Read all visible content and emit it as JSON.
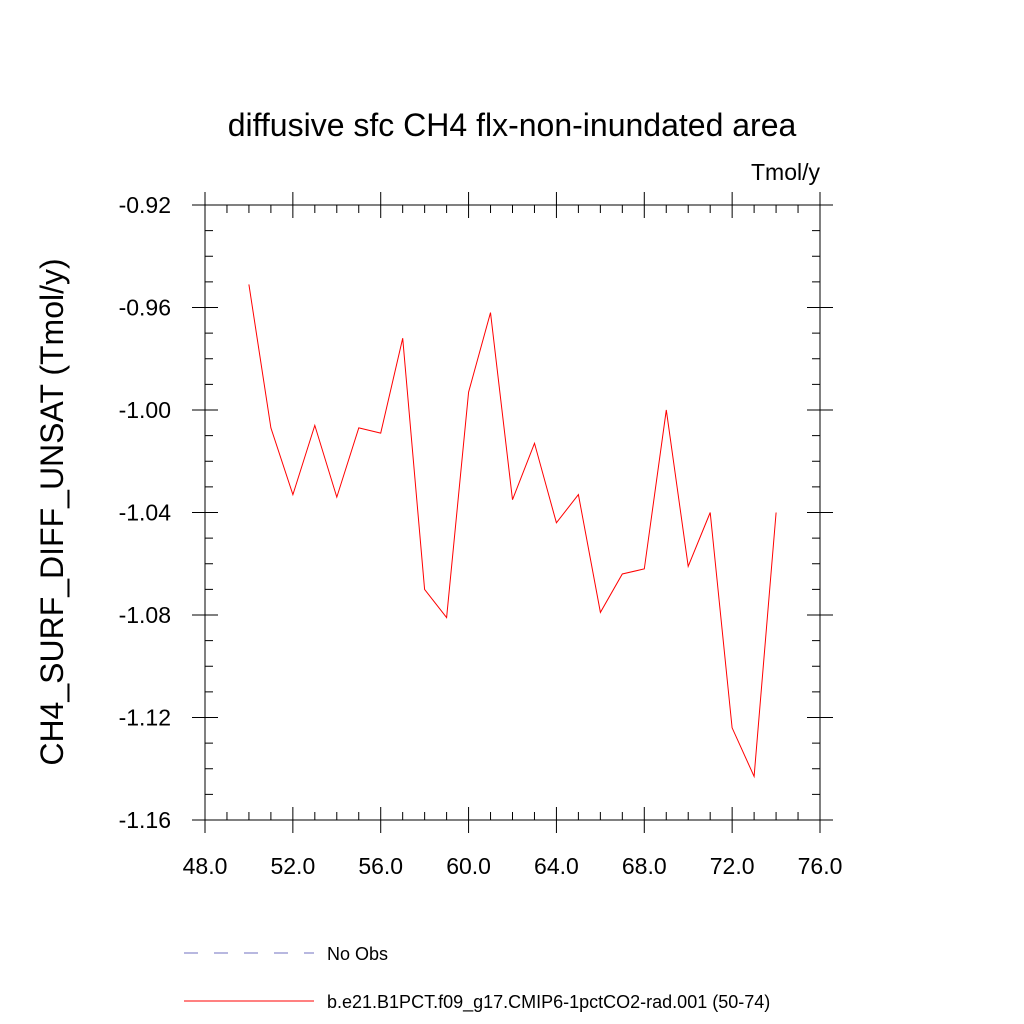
{
  "chart_data": {
    "type": "line",
    "title": "diffusive sfc CH4 flx-non-inundated area",
    "units_label": "Tmol/y",
    "ylabel": "CH4_SURF_DIFF_UNSAT  (Tmol/y)",
    "xlabel": "",
    "xlim": [
      48,
      76
    ],
    "ylim": [
      -1.16,
      -0.92
    ],
    "x_ticks": [
      48,
      52,
      56,
      60,
      64,
      68,
      72,
      76
    ],
    "x_tick_labels": [
      "48.0",
      "52.0",
      "56.0",
      "60.0",
      "64.0",
      "68.0",
      "72.0",
      "76.0"
    ],
    "y_ticks": [
      -1.16,
      -1.12,
      -1.08,
      -1.04,
      -1.0,
      -0.96,
      -0.92
    ],
    "y_tick_labels": [
      "-1.16",
      "-1.12",
      "-1.08",
      "-1.04",
      "-1.00",
      "-0.96",
      "-0.92"
    ],
    "x_minor_step": 1,
    "y_minor_step": 0.01,
    "grid": false,
    "legend_position": "bottom",
    "series": [
      {
        "name": "b.e21.B1PCT.f09_g17.CMIP6-1pctCO2-rad.001 (50-74)",
        "color": "#ff0000",
        "style": "solid",
        "x": [
          50,
          51,
          52,
          53,
          54,
          55,
          56,
          57,
          58,
          59,
          60,
          61,
          62,
          63,
          64,
          65,
          66,
          67,
          68,
          69,
          70,
          71,
          72,
          73,
          74
        ],
        "y": [
          -0.951,
          -1.007,
          -1.033,
          -1.006,
          -1.034,
          -1.007,
          -1.009,
          -0.972,
          -1.07,
          -1.081,
          -0.993,
          -0.962,
          -1.035,
          -1.013,
          -1.044,
          -1.033,
          -1.079,
          -1.064,
          -1.062,
          -1.0,
          -1.061,
          -1.04,
          -1.124,
          -1.143,
          -1.04
        ]
      }
    ],
    "legend": [
      {
        "label": "No Obs",
        "color": "#7070c0",
        "style": "dashed"
      },
      {
        "label": "b.e21.B1PCT.f09_g17.CMIP6-1pctCO2-rad.001 (50-74)",
        "color": "#ff0000",
        "style": "solid"
      }
    ]
  }
}
